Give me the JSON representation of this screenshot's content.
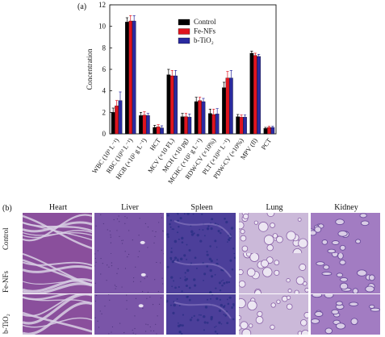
{
  "figure": {
    "panel_a_label": "(a)",
    "panel_b_label": "(b)"
  },
  "chart_data": {
    "type": "bar",
    "ylabel": "Concentration",
    "ylim": [
      0,
      12
    ],
    "yticks": [
      0,
      2,
      4,
      6,
      8,
      10,
      12
    ],
    "legend_position": "top-center",
    "categories": [
      "WBC (10⁹ L⁻¹)",
      "RBC (10¹² L⁻¹)",
      "HGB (×10² g L⁻¹)",
      "HCT",
      "MCV (×10 FL)",
      "MCH (×10 pg)",
      "MCHC (×10² g L⁻¹)",
      "RDW-CV (×10%)",
      "PLT (×10¹¹ L⁻¹)",
      "PDW-CV (×10%)",
      "MPV (fl)",
      "PCT"
    ],
    "series": [
      {
        "name": "Control",
        "color": "#000000",
        "values": [
          2.0,
          10.4,
          1.7,
          0.6,
          5.5,
          1.6,
          3.0,
          1.9,
          4.3,
          1.6,
          7.5,
          0.5
        ],
        "errors": [
          0.4,
          0.4,
          0.3,
          0.2,
          0.5,
          0.3,
          0.4,
          0.4,
          0.5,
          0.2,
          0.2,
          0.1
        ]
      },
      {
        "name": "Fe-NFs",
        "color": "#e0141e",
        "values": [
          2.6,
          10.5,
          1.75,
          0.65,
          5.4,
          1.6,
          3.1,
          1.8,
          5.2,
          1.55,
          7.3,
          0.6
        ],
        "errors": [
          0.5,
          0.5,
          0.3,
          0.2,
          0.5,
          0.3,
          0.3,
          0.5,
          0.6,
          0.2,
          0.2,
          0.1
        ]
      },
      {
        "name": "b-TiO₂",
        "color": "#2a2aa0",
        "values": [
          3.1,
          10.5,
          1.7,
          0.55,
          5.4,
          1.55,
          3.0,
          1.85,
          5.2,
          1.55,
          7.2,
          0.6
        ],
        "errors": [
          0.8,
          0.5,
          0.2,
          0.2,
          0.5,
          0.3,
          0.3,
          0.5,
          0.7,
          0.2,
          0.2,
          0.1
        ]
      }
    ]
  },
  "histology": {
    "columns": [
      "Heart",
      "Liver",
      "Spleen",
      "Lung",
      "Kidney"
    ],
    "rows": [
      "Control",
      "Fe-NFs",
      "b-TiO₂"
    ]
  }
}
